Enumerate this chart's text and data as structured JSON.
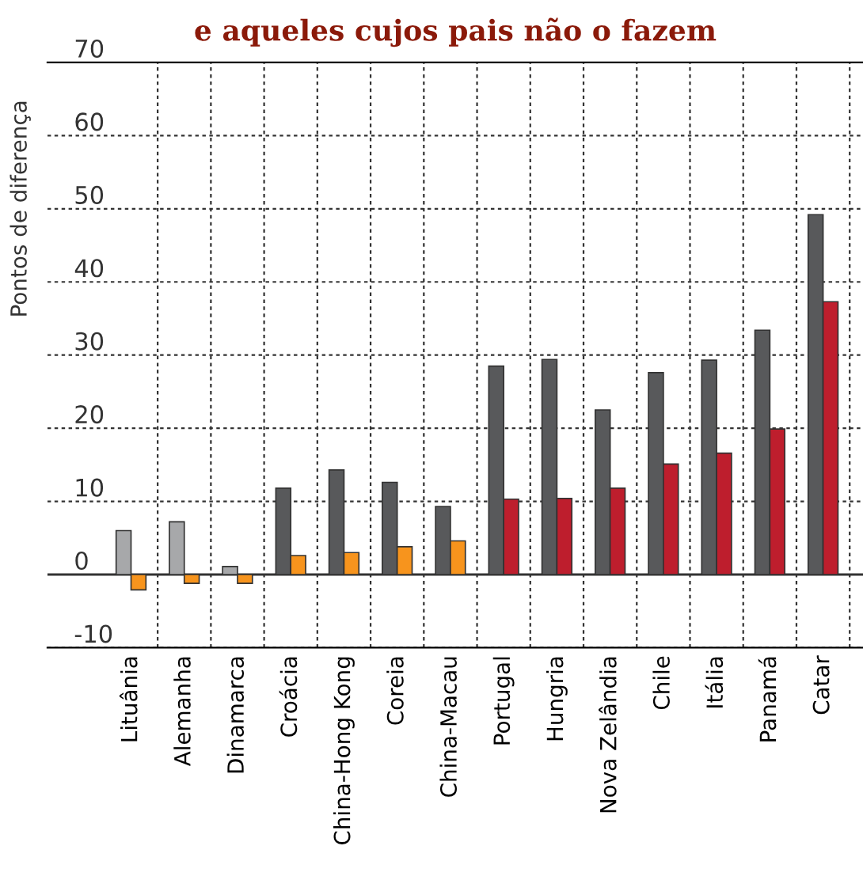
{
  "chart_data": {
    "type": "bar",
    "title": "e aqueles cujos pais não o fazem",
    "ylabel": "Pontos de diferença",
    "categories": [
      "Lituânia",
      "Alemanha",
      "Dinamarca",
      "Croácia",
      "China-Hong Kong",
      "Coreia",
      "China-Macau",
      "Portugal",
      "Hungria",
      "Nova Zelândia",
      "Chile",
      "Itália",
      "Panamá",
      "Catar"
    ],
    "series": [
      {
        "colors": [
          "#a7a8aa",
          "#a7a8aa",
          "#a7a8aa",
          "#58595b",
          "#58595b",
          "#58595b",
          "#58595b",
          "#58595b",
          "#58595b",
          "#58595b",
          "#58595b",
          "#58595b",
          "#58595b",
          "#58595b"
        ],
        "values": [
          6.0,
          7.2,
          1.1,
          11.8,
          14.3,
          12.6,
          9.3,
          28.5,
          29.4,
          22.5,
          27.6,
          29.3,
          33.4,
          49.2
        ]
      },
      {
        "colors": [
          "#f7941d",
          "#f7941d",
          "#f7941d",
          "#f7941d",
          "#f7941d",
          "#f7941d",
          "#f7941d",
          "#be1e2d",
          "#be1e2d",
          "#be1e2d",
          "#be1e2d",
          "#be1e2d",
          "#be1e2d",
          "#be1e2d"
        ],
        "values": [
          -2.1,
          -1.2,
          -1.2,
          2.6,
          3.0,
          3.8,
          4.6,
          10.3,
          10.4,
          11.8,
          15.1,
          16.6,
          19.9,
          37.3
        ]
      }
    ],
    "ylim": [
      -10,
      70
    ],
    "yticks": [
      -10,
      0,
      10,
      20,
      30,
      40,
      50,
      60,
      70
    ],
    "grid": true,
    "legend": false
  }
}
